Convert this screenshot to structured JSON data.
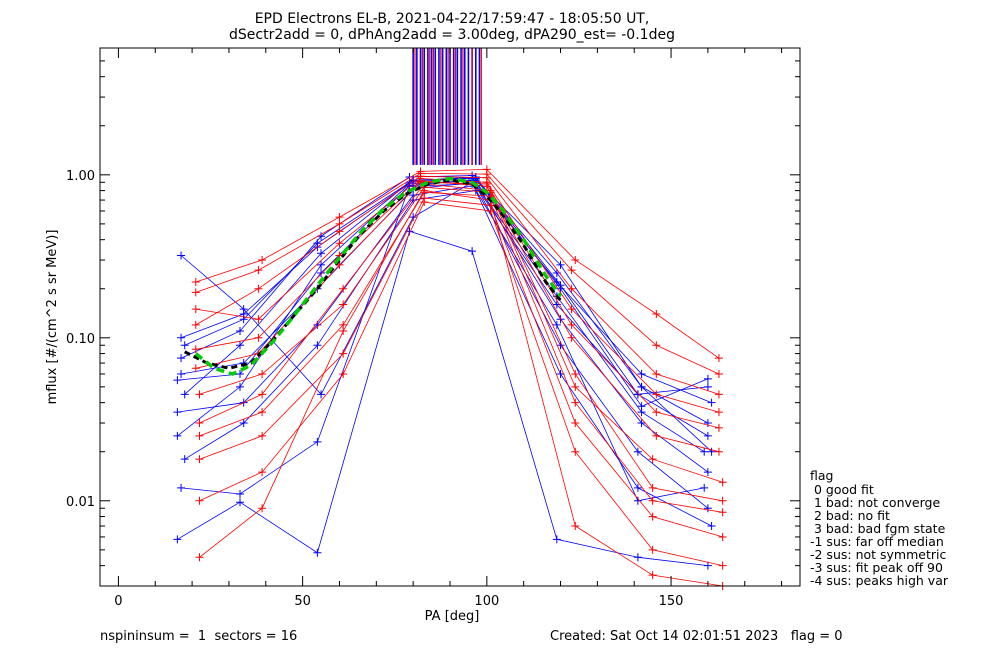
{
  "chart_data": {
    "type": "line",
    "title": "EPD Electrons EL-B, 2021-04-22/17:59:47 - 18:05:50 UT,",
    "subtitle": "dSectr2add = 0, dPhAng2add = 3.00deg, dPA290_est=  -0.1deg",
    "xlabel": "PA [deg]",
    "ylabel": "mflux [#/(cm^2 s sr MeV)]",
    "xlim": [
      -5,
      185
    ],
    "ylim": [
      0.003,
      6.0
    ],
    "yscale": "log",
    "xticks": [
      "0",
      "50",
      "100",
      "150"
    ],
    "xtick_values": [
      0,
      50,
      100,
      150
    ],
    "yticks": [
      "0.01",
      "0.10",
      "1.00"
    ],
    "ytick_values": [
      0.01,
      0.1,
      1.0
    ],
    "colors": {
      "red": "#ff0000",
      "blue": "#0000ff",
      "fit": "#00cc00",
      "obs": "#000000"
    },
    "series": [
      {
        "color": "#0000ff",
        "x": [
          16,
          33,
          54,
          79,
          96,
          119,
          141,
          160
        ],
        "y": [
          0.0058,
          0.0098,
          0.0048,
          0.45,
          0.34,
          0.0058,
          0.0045,
          0.004
        ]
      },
      {
        "color": "#0000ff",
        "x": [
          17,
          34,
          55,
          80,
          97,
          120,
          142,
          161
        ],
        "y": [
          0.32,
          0.15,
          0.045,
          0.55,
          0.93,
          0.28,
          0.05,
          0.02
        ]
      },
      {
        "color": "#0000ff",
        "x": [
          17,
          33,
          54,
          79,
          96,
          119,
          141,
          159
        ],
        "y": [
          0.012,
          0.011,
          0.023,
          0.85,
          0.88,
          0.12,
          0.01,
          0.012
        ]
      },
      {
        "color": "#0000ff",
        "x": [
          18,
          34,
          54,
          80,
          97,
          120,
          142,
          160
        ],
        "y": [
          0.09,
          0.13,
          0.38,
          0.93,
          0.95,
          0.2,
          0.038,
          0.056
        ]
      },
      {
        "color": "#0000ff",
        "x": [
          16,
          33,
          55,
          79,
          96,
          119,
          141,
          160
        ],
        "y": [
          0.025,
          0.05,
          0.28,
          0.88,
          0.92,
          0.16,
          0.045,
          0.025
        ]
      },
      {
        "color": "#0000ff",
        "x": [
          17,
          34,
          54,
          80,
          97,
          120,
          142,
          160
        ],
        "y": [
          0.06,
          0.07,
          0.2,
          0.82,
          0.9,
          0.13,
          0.03,
          0.015
        ]
      },
      {
        "color": "#0000ff",
        "x": [
          18,
          33,
          55,
          79,
          96,
          119,
          142,
          161
        ],
        "y": [
          0.045,
          0.09,
          0.33,
          0.9,
          0.96,
          0.22,
          0.06,
          0.04
        ]
      },
      {
        "color": "#0000ff",
        "x": [
          16,
          34,
          54,
          80,
          97,
          120,
          141,
          160
        ],
        "y": [
          0.035,
          0.04,
          0.12,
          0.75,
          0.86,
          0.09,
          0.02,
          0.009
        ]
      },
      {
        "color": "#0000ff",
        "x": [
          17,
          33,
          55,
          79,
          96,
          119,
          142,
          160
        ],
        "y": [
          0.075,
          0.11,
          0.42,
          0.97,
          0.99,
          0.25,
          0.05,
          0.03
        ]
      },
      {
        "color": "#0000ff",
        "x": [
          18,
          34,
          54,
          80,
          97,
          120,
          141,
          161
        ],
        "y": [
          0.018,
          0.03,
          0.09,
          0.7,
          0.8,
          0.06,
          0.012,
          0.007
        ]
      },
      {
        "color": "#0000ff",
        "x": [
          16,
          33,
          55,
          79,
          96,
          119,
          142,
          159
        ],
        "y": [
          0.055,
          0.06,
          0.25,
          0.86,
          0.93,
          0.18,
          0.035,
          0.02
        ]
      },
      {
        "color": "#0000ff",
        "x": [
          17,
          34,
          54,
          80,
          97,
          120,
          141,
          160
        ],
        "y": [
          0.1,
          0.14,
          0.36,
          0.92,
          0.97,
          0.21,
          0.045,
          0.05
        ]
      },
      {
        "color": "#ff0000",
        "x": [
          21,
          39,
          60,
          82,
          100,
          124,
          146,
          163
        ],
        "y": [
          0.22,
          0.3,
          0.55,
          1.05,
          1.08,
          0.3,
          0.14,
          0.075
        ]
      },
      {
        "color": "#ff0000",
        "x": [
          22,
          39,
          61,
          83,
          101,
          124,
          145,
          164
        ],
        "y": [
          0.0045,
          0.009,
          0.11,
          0.8,
          0.7,
          0.007,
          0.0035,
          0.003
        ]
      },
      {
        "color": "#ff0000",
        "x": [
          21,
          38,
          60,
          82,
          100,
          123,
          146,
          163
        ],
        "y": [
          0.085,
          0.1,
          0.32,
          0.92,
          0.85,
          0.1,
          0.025,
          0.02
        ]
      },
      {
        "color": "#ff0000",
        "x": [
          22,
          39,
          61,
          83,
          101,
          124,
          145,
          164
        ],
        "y": [
          0.03,
          0.045,
          0.2,
          0.88,
          0.8,
          0.06,
          0.012,
          0.01
        ]
      },
      {
        "color": "#ff0000",
        "x": [
          21,
          38,
          60,
          82,
          100,
          123,
          146,
          163
        ],
        "y": [
          0.12,
          0.2,
          0.45,
          0.98,
          0.96,
          0.2,
          0.06,
          0.045
        ]
      },
      {
        "color": "#ff0000",
        "x": [
          22,
          39,
          61,
          83,
          101,
          124,
          145,
          164
        ],
        "y": [
          0.018,
          0.025,
          0.08,
          0.72,
          0.65,
          0.03,
          0.008,
          0.006
        ]
      },
      {
        "color": "#ff0000",
        "x": [
          21,
          38,
          60,
          82,
          100,
          123,
          146,
          163
        ],
        "y": [
          0.065,
          0.08,
          0.28,
          0.9,
          0.88,
          0.12,
          0.035,
          0.028
        ]
      },
      {
        "color": "#ff0000",
        "x": [
          22,
          39,
          61,
          83,
          101,
          124,
          145,
          164
        ],
        "y": [
          0.045,
          0.06,
          0.16,
          0.84,
          0.78,
          0.05,
          0.018,
          0.013
        ]
      },
      {
        "color": "#ff0000",
        "x": [
          21,
          38,
          60,
          82,
          100,
          123,
          146,
          163
        ],
        "y": [
          0.19,
          0.26,
          0.5,
          1.02,
          1.01,
          0.26,
          0.09,
          0.06
        ]
      },
      {
        "color": "#ff0000",
        "x": [
          22,
          39,
          61,
          83,
          101,
          124,
          145,
          164
        ],
        "y": [
          0.01,
          0.015,
          0.06,
          0.68,
          0.6,
          0.02,
          0.005,
          0.004
        ]
      },
      {
        "color": "#ff0000",
        "x": [
          21,
          38,
          60,
          82,
          100,
          123,
          146,
          163
        ],
        "y": [
          0.15,
          0.13,
          0.38,
          0.95,
          0.9,
          0.15,
          0.045,
          0.035
        ]
      },
      {
        "color": "#ff0000",
        "x": [
          22,
          39,
          61,
          83,
          101,
          124,
          145,
          164
        ],
        "y": [
          0.025,
          0.035,
          0.12,
          0.78,
          0.74,
          0.04,
          0.01,
          0.0085
        ]
      }
    ],
    "fit_curve": {
      "color": "#00cc00",
      "style": "dashed",
      "x": [
        21,
        26,
        31,
        36,
        42,
        48,
        54,
        60,
        66,
        72,
        78,
        84,
        90,
        96,
        100,
        104,
        110,
        116,
        120
      ],
      "y": [
        0.08,
        0.065,
        0.06,
        0.068,
        0.095,
        0.14,
        0.21,
        0.31,
        0.45,
        0.62,
        0.78,
        0.9,
        0.95,
        0.9,
        0.78,
        0.62,
        0.4,
        0.24,
        0.18
      ]
    },
    "observed_curve": {
      "color": "#000000",
      "style": "dashed",
      "x": [
        18,
        24,
        30,
        36,
        42,
        48,
        54,
        60,
        66,
        72,
        78,
        84,
        90,
        96,
        100,
        104,
        110,
        116,
        120
      ],
      "y": [
        0.082,
        0.07,
        0.065,
        0.07,
        0.097,
        0.14,
        0.2,
        0.3,
        0.44,
        0.6,
        0.76,
        0.88,
        0.93,
        0.88,
        0.74,
        0.58,
        0.37,
        0.22,
        0.17
      ]
    },
    "top_bars": {
      "blue_x": [
        80,
        81,
        82,
        83,
        84,
        85,
        86,
        87,
        88,
        89,
        90,
        91,
        92,
        93,
        94,
        95,
        96,
        97,
        98
      ],
      "red_x": [
        80.5,
        82.5,
        84.5,
        85.5,
        87.5,
        89.5,
        91.5,
        93.5,
        96,
        98.5
      ],
      "y_from": 1.15
    }
  },
  "legend": {
    "title": "flag",
    "entries": [
      " 0 good fit",
      " 1 bad: not converge",
      " 2 bad: no fit",
      " 3 bad: bad fgm state",
      "-1 sus: far off median",
      "-2 sus: not symmetric",
      "-3 sus: fit peak off 90",
      "-4 sus: peaks high var"
    ]
  },
  "footer": {
    "left": "nspininsum =  1  sectors = 16",
    "right": "Created: Sat Oct 14 02:01:51 2023   flag = 0"
  }
}
